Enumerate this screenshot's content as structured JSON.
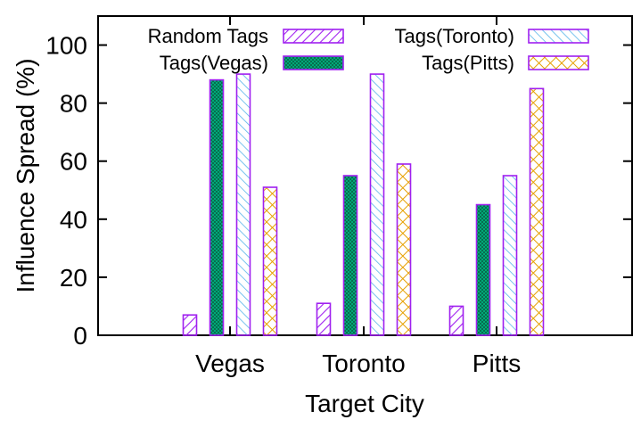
{
  "chart_data": {
    "type": "bar",
    "xlabel": "Target City",
    "ylabel": "Influence Spread (%)",
    "categories": [
      "Vegas",
      "Toronto",
      "Pitts"
    ],
    "ylim": [
      0,
      110
    ],
    "yticks": [
      0,
      20,
      40,
      60,
      80,
      100
    ],
    "grid": false,
    "legend_position": "top",
    "series": [
      {
        "name": "Random Tags",
        "values": [
          7,
          11,
          10
        ],
        "color": "#a020f0",
        "pattern": "diagonal-hatch"
      },
      {
        "name": "Tags(Vegas)",
        "values": [
          88,
          55,
          45
        ],
        "color": "#00a878",
        "pattern": "crosshatch-fill"
      },
      {
        "name": "Tags(Toronto)",
        "values": [
          90,
          90,
          55
        ],
        "color": "#56b4e9",
        "pattern": "back-diagonal-hatch"
      },
      {
        "name": "Tags(Pitts)",
        "values": [
          51,
          59,
          85
        ],
        "color": "#e69f00",
        "pattern": "diamond-hatch"
      }
    ]
  }
}
